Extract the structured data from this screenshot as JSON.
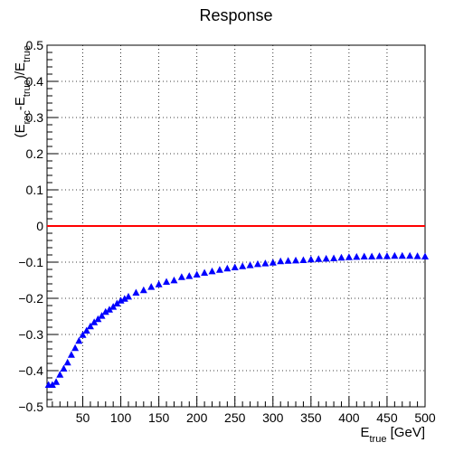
{
  "chart_data": {
    "type": "scatter",
    "title": "Response",
    "ylabel": {
      "parts": [
        {
          "t": "(E",
          "sub": false
        },
        {
          "t": "rec",
          "sub": true
        },
        {
          "t": "-E",
          "sub": false
        },
        {
          "t": "true",
          "sub": true
        },
        {
          "t": ")/E",
          "sub": false
        },
        {
          "t": "true",
          "sub": true
        }
      ]
    },
    "xlabel": {
      "parts": [
        {
          "t": "E",
          "sub": false
        },
        {
          "t": "true",
          "sub": true
        },
        {
          "t": " [GeV]",
          "sub": false
        }
      ]
    },
    "xlim": [
      3,
      500
    ],
    "ylim": [
      -0.5,
      0.5
    ],
    "x_ticks": [
      50,
      100,
      150,
      200,
      250,
      300,
      350,
      400,
      450,
      500
    ],
    "x_tick_labels": [
      "50",
      "100",
      "150",
      "200",
      "250",
      "300",
      "350",
      "400",
      "450",
      "500"
    ],
    "y_ticks": [
      -0.5,
      -0.4,
      -0.3,
      -0.2,
      -0.1,
      0,
      0.1,
      0.2,
      0.3,
      0.4,
      0.5
    ],
    "y_tick_labels": [
      "−0.5",
      "−0.4",
      "−0.3",
      "−0.2",
      "−0.1",
      "0",
      "0.1",
      "0.2",
      "0.3",
      "0.4",
      "0.5"
    ],
    "grid": true,
    "marker_color": "#0000ff",
    "reference_line": {
      "y": 0,
      "color": "#ff0000"
    },
    "series": [
      {
        "marker": "triangle",
        "points": [
          [
            5,
            -0.44
          ],
          [
            10,
            -0.44
          ],
          [
            15,
            -0.432
          ],
          [
            20,
            -0.412
          ],
          [
            25,
            -0.395
          ],
          [
            30,
            -0.378
          ],
          [
            35,
            -0.357
          ],
          [
            40,
            -0.338
          ],
          [
            45,
            -0.318
          ],
          [
            50,
            -0.302
          ],
          [
            55,
            -0.29
          ],
          [
            60,
            -0.278
          ],
          [
            65,
            -0.267
          ],
          [
            70,
            -0.258
          ],
          [
            75,
            -0.249
          ],
          [
            80,
            -0.238
          ],
          [
            85,
            -0.232
          ],
          [
            90,
            -0.224
          ],
          [
            95,
            -0.215
          ],
          [
            100,
            -0.207
          ],
          [
            105,
            -0.202
          ],
          [
            110,
            -0.196
          ],
          [
            120,
            -0.185
          ],
          [
            130,
            -0.178
          ],
          [
            140,
            -0.169
          ],
          [
            150,
            -0.162
          ],
          [
            160,
            -0.155
          ],
          [
            170,
            -0.151
          ],
          [
            180,
            -0.142
          ],
          [
            190,
            -0.139
          ],
          [
            200,
            -0.135
          ],
          [
            210,
            -0.13
          ],
          [
            220,
            -0.126
          ],
          [
            230,
            -0.122
          ],
          [
            240,
            -0.118
          ],
          [
            250,
            -0.115
          ],
          [
            260,
            -0.112
          ],
          [
            270,
            -0.109
          ],
          [
            280,
            -0.106
          ],
          [
            290,
            -0.104
          ],
          [
            300,
            -0.102
          ],
          [
            310,
            -0.098
          ],
          [
            320,
            -0.097
          ],
          [
            330,
            -0.096
          ],
          [
            340,
            -0.095
          ],
          [
            350,
            -0.093
          ],
          [
            360,
            -0.092
          ],
          [
            370,
            -0.091
          ],
          [
            380,
            -0.09
          ],
          [
            390,
            -0.088
          ],
          [
            400,
            -0.087
          ],
          [
            410,
            -0.086
          ],
          [
            420,
            -0.085
          ],
          [
            430,
            -0.085
          ],
          [
            440,
            -0.084
          ],
          [
            450,
            -0.084
          ],
          [
            460,
            -0.083
          ],
          [
            470,
            -0.083
          ],
          [
            480,
            -0.083
          ],
          [
            490,
            -0.084
          ],
          [
            500,
            -0.085
          ]
        ]
      }
    ]
  }
}
